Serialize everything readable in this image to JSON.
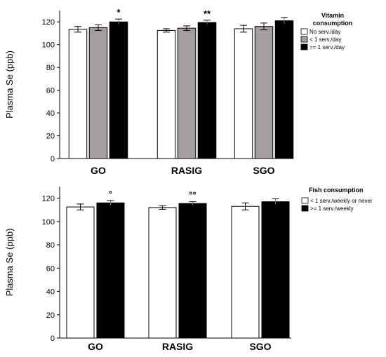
{
  "chart_data": [
    {
      "type": "bar",
      "categories": [
        "GO",
        "RASIG",
        "SGO"
      ],
      "ylabel": "Plasma Se (ppb)",
      "ylim": [
        0,
        130
      ],
      "yticks": [
        "0",
        "20",
        "40",
        "60",
        "80",
        "100",
        "120"
      ],
      "legend_title": "Vitamin consumption",
      "legend_position": "top-right",
      "series": [
        {
          "name": "No serv./day",
          "color": "#ffffff",
          "values": [
            113.5,
            112.5,
            114.0
          ],
          "errors": [
            2.5,
            1.5,
            3.0
          ]
        },
        {
          "name": "< 1 serv./day",
          "color": "#a49e9e",
          "values": [
            115.0,
            114.5,
            116.0
          ],
          "errors": [
            2.5,
            2.0,
            3.0
          ]
        },
        {
          "name": ">= 1 serv./day",
          "color": "#000000",
          "values": [
            120.0,
            119.5,
            121.0
          ],
          "errors": [
            2.5,
            2.0,
            3.0
          ]
        }
      ],
      "annotations": [
        "*",
        "**",
        ""
      ],
      "annotation_series": 2
    },
    {
      "type": "bar",
      "categories": [
        "GO",
        "RASIG",
        "SGO"
      ],
      "ylabel": "Plasma Se (ppb)",
      "ylim": [
        0,
        130
      ],
      "yticks": [
        "0",
        "20",
        "40",
        "60",
        "80",
        "100",
        "120"
      ],
      "legend_title": "Fish consumption",
      "legend_position": "top-right",
      "series": [
        {
          "name": "< 1 serv./weekly or never",
          "color": "#ffffff",
          "values": [
            112.5,
            112.0,
            113.0
          ],
          "errors": [
            2.5,
            1.5,
            3.0
          ]
        },
        {
          "name": ">= 1 serv./weekly",
          "color": "#000000",
          "values": [
            116.0,
            115.5,
            117.0
          ],
          "errors": [
            2.0,
            1.5,
            2.5
          ]
        }
      ],
      "annotations": [
        "°",
        "°°",
        ""
      ],
      "annotation_series": 1
    }
  ]
}
